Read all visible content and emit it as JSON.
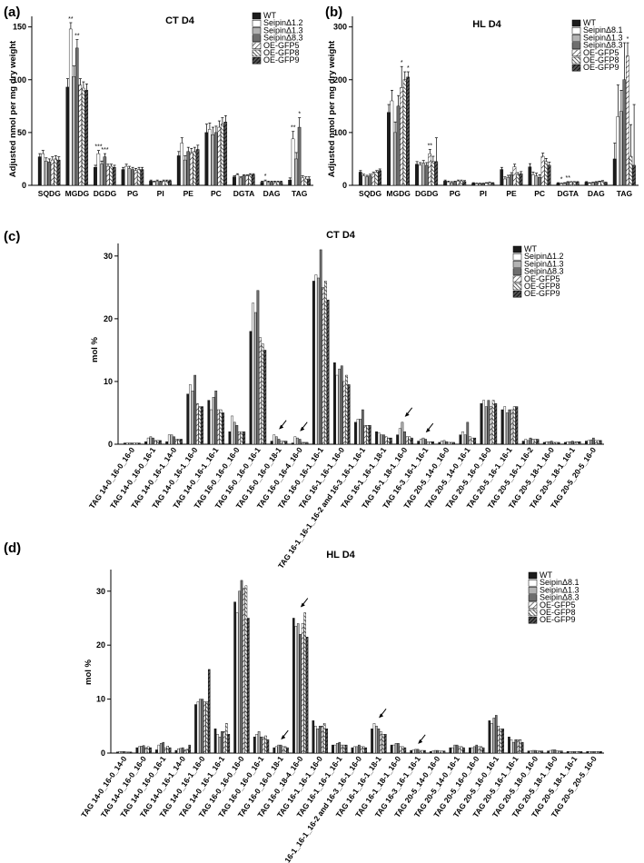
{
  "colors": {
    "WT": "#1c1c1c",
    "mut1": "#ffffff",
    "mut2": "#b3b3b3",
    "mut3": "#6e6e6e",
    "oe5": "hatch-light",
    "oe8": "hatch-medium",
    "oe9": "hatch-dark"
  },
  "panels": [
    {
      "id": "a",
      "label": "(a)",
      "title": "CT D4",
      "ylabel": "Adjusted nmol per mg dry weight",
      "legend": [
        "WT",
        "SeipinΔ1.2",
        "SeipinΔ1.3",
        "SeipinΔ8.3",
        "OE-GFP5",
        "OE-GFP8",
        "OE-GFP9"
      ],
      "yticks": [
        "0",
        "50",
        "100",
        "150"
      ]
    },
    {
      "id": "b",
      "label": "(b)",
      "title": "HL D4",
      "ylabel": "Adjusted nmol per mg dry weight",
      "legend": [
        "WT",
        "SeipinΔ8.1",
        "SeipinΔ1.3",
        "SeipinΔ8.3",
        "OE-GFP5",
        "OE-GFP8",
        "OE-GFP9"
      ],
      "yticks": [
        "0",
        "100",
        "200",
        "300"
      ]
    },
    {
      "id": "c",
      "label": "(c)",
      "title": "CT D4",
      "ylabel": "mol %",
      "legend": [
        "WT",
        "SeipinΔ1.2",
        "SeipinΔ1.3",
        "SeipinΔ8.3",
        "OE-GFP5",
        "OE-GFP8",
        "OE-GFP9"
      ],
      "yticks": [
        "0",
        "10",
        "20",
        "30"
      ]
    },
    {
      "id": "d",
      "label": "(d)",
      "title": "HL D4",
      "ylabel": "mol %",
      "legend": [
        "WT",
        "SeipinΔ8.1",
        "SeipinΔ1.3",
        "SeipinΔ8.3",
        "OE-GFP5",
        "OE-GFP8",
        "OE-GFP9"
      ],
      "yticks": [
        "0",
        "10",
        "20",
        "30"
      ]
    }
  ],
  "chart_data": [
    {
      "panel": "a",
      "type": "bar",
      "title": "CT D4",
      "ylabel": "Adjusted nmol per mg dry weight",
      "ylim": [
        0,
        160
      ],
      "categories": [
        "SQDG",
        "MGDG",
        "DGDG",
        "PG",
        "PI",
        "PE",
        "PC",
        "DGTA",
        "DAG",
        "TAG"
      ],
      "series": [
        {
          "name": "WT",
          "values": [
            27,
            93,
            17,
            15,
            4,
            28,
            50,
            8,
            3,
            5
          ]
        },
        {
          "name": "SeipinΔ1.2",
          "values": [
            30,
            148,
            30,
            18,
            3,
            40,
            53,
            10,
            4,
            44
          ]
        },
        {
          "name": "SeipinΔ1.3",
          "values": [
            23,
            103,
            20,
            16,
            4,
            24,
            48,
            7,
            3,
            25
          ]
        },
        {
          "name": "SeipinΔ8.3",
          "values": [
            22,
            130,
            27,
            15,
            3,
            32,
            50,
            9,
            3,
            55
          ]
        },
        {
          "name": "OE-GFP5",
          "values": [
            24,
            95,
            18,
            14,
            4,
            31,
            55,
            9,
            3,
            7
          ]
        },
        {
          "name": "OE-GFP8",
          "values": [
            25,
            92,
            18,
            15,
            4,
            32,
            58,
            10,
            3,
            6
          ]
        },
        {
          "name": "OE-GFP9",
          "values": [
            24,
            90,
            17,
            15,
            4,
            34,
            60,
            10,
            3,
            6
          ]
        }
      ],
      "errors": [
        [
          3,
          8,
          2,
          2,
          1,
          4,
          8,
          1,
          1,
          2
        ],
        [
          3,
          6,
          3,
          2,
          1,
          5,
          6,
          1,
          1,
          7
        ],
        [
          3,
          10,
          3,
          2,
          1,
          4,
          7,
          1,
          1,
          6
        ],
        [
          3,
          8,
          3,
          2,
          1,
          4,
          6,
          1,
          1,
          9
        ],
        [
          3,
          6,
          2,
          2,
          1,
          4,
          6,
          1,
          1,
          2
        ],
        [
          3,
          6,
          2,
          2,
          1,
          4,
          6,
          1,
          1,
          2
        ],
        [
          3,
          6,
          2,
          2,
          1,
          4,
          6,
          1,
          1,
          2
        ]
      ],
      "significance": [
        {
          "category": "MGDG",
          "series": 1,
          "mark": "**"
        },
        {
          "category": "MGDG",
          "series": 3,
          "mark": "**"
        },
        {
          "category": "DGDG",
          "series": 1,
          "mark": "***"
        },
        {
          "category": "DGDG",
          "series": 3,
          "mark": "***"
        },
        {
          "category": "DAG",
          "series": 1,
          "mark": "*"
        },
        {
          "category": "TAG",
          "series": 1,
          "mark": "**"
        },
        {
          "category": "TAG",
          "series": 3,
          "mark": "*"
        }
      ]
    },
    {
      "panel": "b",
      "type": "bar",
      "title": "HL D4",
      "ylabel": "Adjusted nmol per mg dry weight",
      "ylim": [
        0,
        320
      ],
      "categories": [
        "SQDG",
        "MGDG",
        "DGDG",
        "PG",
        "PI",
        "PE",
        "PC",
        "DGTA",
        "DAG",
        "TAG"
      ],
      "series": [
        {
          "name": "WT",
          "values": [
            25,
            138,
            40,
            8,
            4,
            30,
            35,
            4,
            6,
            50
          ]
        },
        {
          "name": "SeipinΔ8.1",
          "values": [
            18,
            160,
            38,
            6,
            3,
            12,
            20,
            3,
            4,
            130
          ]
        },
        {
          "name": "SeipinΔ1.3",
          "values": [
            16,
            100,
            42,
            5,
            3,
            15,
            18,
            4,
            5,
            140
          ]
        },
        {
          "name": "SeipinΔ8.3",
          "values": [
            18,
            150,
            38,
            6,
            3,
            20,
            15,
            6,
            6,
            200
          ]
        },
        {
          "name": "OE-GFP5",
          "values": [
            22,
            185,
            60,
            8,
            4,
            35,
            55,
            6,
            7,
            245
          ]
        },
        {
          "name": "OE-GFP8",
          "values": [
            25,
            200,
            45,
            8,
            5,
            20,
            45,
            6,
            8,
            55
          ]
        },
        {
          "name": "OE-GFP9",
          "values": [
            28,
            205,
            45,
            7,
            4,
            22,
            38,
            6,
            5,
            38
          ]
        }
      ],
      "errors": [
        [
          3,
          15,
          5,
          2,
          1,
          4,
          6,
          1,
          1,
          30
        ],
        [
          3,
          20,
          5,
          2,
          1,
          4,
          5,
          1,
          1,
          60
        ],
        [
          3,
          20,
          5,
          2,
          1,
          4,
          5,
          1,
          1,
          40
        ],
        [
          3,
          20,
          5,
          2,
          1,
          4,
          5,
          1,
          1,
          70
        ],
        [
          3,
          40,
          8,
          2,
          1,
          5,
          6,
          1,
          1,
          25
        ],
        [
          3,
          15,
          10,
          2,
          1,
          4,
          6,
          1,
          1,
          60
        ],
        [
          3,
          10,
          45,
          2,
          1,
          4,
          6,
          1,
          1,
          115
        ]
      ],
      "significance": [
        {
          "category": "MGDG",
          "series": 4,
          "mark": "*"
        },
        {
          "category": "MGDG",
          "series": 6,
          "mark": "*"
        },
        {
          "category": "DGDG",
          "series": 4,
          "mark": "**"
        },
        {
          "category": "DGTA",
          "series": 1,
          "mark": "*"
        },
        {
          "category": "DGTA",
          "series": 3,
          "mark": "**"
        },
        {
          "category": "TAG",
          "series": 4,
          "mark": "*"
        }
      ]
    },
    {
      "panel": "c",
      "type": "bar",
      "title": "CT D4",
      "ylabel": "mol %",
      "ylim": [
        0,
        32
      ],
      "categories": [
        "TAG 14-0_16-0_16-0",
        "TAG 14-0_16-0_16-1",
        "TAG 14-0_16-1_14-0",
        "TAG 14-0_16-1_16-0",
        "TAG 14-0_16-1_16-1",
        "TAG 16-0_16-0_16-0",
        "TAG 16-0_16-0_16-1",
        "TAG 16-0_16-0_18-1",
        "TAG 16-0_16-4_16-0",
        "TAG 16-0_16-1_16-1",
        "TAG 16-1_16-1_16-0",
        "TAG 16-1_16-1_16-2 and 16-3_16-1_16-1",
        "TAG 16-1_16-1_18-1",
        "TAG 16-1_18-1_16-0",
        "TAG 16-3_16-1_16-1",
        "TAG 20-5_14-0_16-0",
        "TAG 20-5_14-0_16-1",
        "TAG 20-5_16-0_16-0",
        "TAG 20-5_16-1_16-1",
        "TAG 20-5_16-1_16-2",
        "TAG 20-5_18-1_16-0",
        "TAG 20-5_18-1_16-1",
        "TAG 20-5_20-5_16-0"
      ],
      "series": [
        {
          "name": "WT",
          "values": [
            0.2,
            0.4,
            0.4,
            8.0,
            7.0,
            2.0,
            18.0,
            0.5,
            0.2,
            26.0,
            13.0,
            3.5,
            2.0,
            1.5,
            0.5,
            0.3,
            1.5,
            6.5,
            5.5,
            0.5,
            0.3,
            0.3,
            0.5
          ]
        },
        {
          "name": "SeipinΔ1.2",
          "values": [
            0.2,
            1.0,
            1.5,
            9.5,
            5.5,
            4.5,
            22.5,
            1.5,
            1.2,
            27.0,
            11.0,
            4.0,
            1.8,
            2.5,
            0.8,
            0.5,
            2.0,
            7.0,
            6.0,
            0.8,
            0.4,
            0.4,
            0.6
          ]
        },
        {
          "name": "SeipinΔ1.3",
          "values": [
            0.2,
            1.2,
            1.5,
            8.5,
            7.5,
            3.5,
            21.0,
            1.2,
            1.0,
            26.5,
            12.0,
            4.0,
            1.5,
            3.5,
            1.0,
            0.6,
            1.5,
            6.0,
            5.0,
            0.6,
            0.4,
            0.4,
            0.7
          ]
        },
        {
          "name": "SeipinΔ8.3",
          "values": [
            0.2,
            1.0,
            1.2,
            11.0,
            8.5,
            3.0,
            24.5,
            0.8,
            0.8,
            31.0,
            12.5,
            5.5,
            1.5,
            2.0,
            0.8,
            0.4,
            3.5,
            7.0,
            5.5,
            1.0,
            0.5,
            0.5,
            1.0
          ]
        },
        {
          "name": "OE-GFP5",
          "values": [
            0.2,
            0.6,
            0.8,
            6.5,
            5.5,
            2.0,
            17.0,
            0.5,
            0.3,
            25.0,
            10.0,
            3.0,
            1.2,
            1.2,
            0.4,
            0.3,
            1.2,
            6.0,
            5.5,
            0.8,
            0.3,
            0.4,
            0.6
          ]
        },
        {
          "name": "OE-GFP8",
          "values": [
            0.2,
            0.6,
            0.8,
            6.0,
            5.5,
            2.0,
            16.0,
            0.5,
            0.3,
            26.0,
            11.0,
            3.0,
            1.0,
            1.2,
            0.4,
            0.3,
            1.0,
            7.0,
            6.0,
            0.8,
            0.3,
            0.4,
            0.6
          ]
        },
        {
          "name": "OE-GFP9",
          "values": [
            0.2,
            0.6,
            0.8,
            6.0,
            5.0,
            2.0,
            15.0,
            0.5,
            0.3,
            23.0,
            9.5,
            3.0,
            1.0,
            1.0,
            0.4,
            0.3,
            1.0,
            6.5,
            6.0,
            0.8,
            0.3,
            0.4,
            0.6
          ]
        }
      ],
      "arrows_at": [
        "TAG 16-0_16-0_18-1",
        "TAG 16-0_16-4_16-0",
        "TAG 16-1_18-1_16-0",
        "TAG 16-3_16-1_16-1"
      ]
    },
    {
      "panel": "d",
      "type": "bar",
      "title": "HL D4",
      "ylabel": "mol %",
      "ylim": [
        0,
        34
      ],
      "categories": [
        "TAG 14-0_16-0_14-0",
        "TAG 14-0_16-0_16-0",
        "TAG 14-0_16-0_16-1",
        "TAG 14-0_16-1_14-0",
        "TAG 14-0_16-1_16-0",
        "TAG 14-0_16-1_16-1",
        "TAG 16-0_16-0_16-0",
        "TAG 16-0_16-0_16-1",
        "TAG 16-0_16-0_18-1",
        "TAG 16-0_18-4_16-0",
        "TAG 16-1_16-1_16-0",
        "TAG 16-1_16-1_16-1",
        "TAG 16-1_16-1_16-2 and 16-3_16-1_16-0",
        "TAG 16-1_16-1_18-1",
        "TAG 16-1_18-1_16-0",
        "TAG 16-3_16-1_16-1",
        "TAG 20-5_14-0_16-0",
        "TAG 20-5_14-0_16-1",
        "TAG 20-5_16-0_16-0",
        "TAG 20-5_16-0_16-1",
        "TAG 20-5_16-1_16-1",
        "TAG 20-5_18-0_16-0",
        "TAG 20-5_18-1_16-0",
        "TAG 20-5_18-1_16-1",
        "TAG 20-5_20-5_16-0"
      ],
      "series": [
        {
          "name": "WT",
          "values": [
            0.2,
            1.0,
            0.6,
            0.5,
            9.0,
            4.5,
            28.0,
            3.0,
            1.0,
            25.0,
            6.0,
            1.5,
            1.0,
            4.5,
            1.5,
            0.5,
            0.3,
            1.0,
            1.0,
            6.0,
            3.0,
            0.4,
            0.4,
            0.3,
            0.3
          ]
        },
        {
          "name": "SeipinΔ8.1",
          "values": [
            0.3,
            1.2,
            1.5,
            0.8,
            9.5,
            3.5,
            26.0,
            3.5,
            1.2,
            23.5,
            5.0,
            1.5,
            1.2,
            5.5,
            1.5,
            0.6,
            0.4,
            1.0,
            1.0,
            5.5,
            2.5,
            0.4,
            0.5,
            0.3,
            0.3
          ]
        },
        {
          "name": "SeipinΔ1.3",
          "values": [
            0.3,
            1.3,
            1.8,
            0.9,
            10.0,
            3.0,
            30.0,
            4.0,
            1.5,
            24.0,
            4.5,
            1.8,
            1.2,
            5.0,
            1.8,
            0.7,
            0.5,
            1.5,
            1.2,
            6.5,
            2.0,
            0.5,
            0.6,
            0.3,
            0.3
          ]
        },
        {
          "name": "SeipinΔ8.3",
          "values": [
            0.3,
            1.4,
            2.0,
            1.0,
            10.0,
            4.0,
            32.0,
            3.0,
            1.5,
            22.0,
            5.0,
            2.0,
            1.5,
            4.5,
            1.8,
            0.7,
            0.5,
            1.5,
            1.5,
            7.0,
            2.5,
            0.5,
            0.6,
            0.3,
            0.3
          ]
        },
        {
          "name": "OE-GFP5",
          "values": [
            0.2,
            1.0,
            1.0,
            0.6,
            9.5,
            4.0,
            30.5,
            3.0,
            1.2,
            24.0,
            5.0,
            1.5,
            1.2,
            4.0,
            1.2,
            0.5,
            0.4,
            1.2,
            1.2,
            5.0,
            2.5,
            0.4,
            0.4,
            0.3,
            0.3
          ]
        },
        {
          "name": "OE-GFP8",
          "values": [
            0.2,
            1.2,
            1.3,
            0.7,
            9.5,
            5.5,
            31.0,
            3.2,
            1.2,
            26.0,
            5.5,
            1.5,
            1.2,
            3.5,
            1.2,
            0.5,
            0.4,
            1.2,
            1.2,
            4.5,
            2.5,
            0.4,
            0.4,
            0.3,
            0.3
          ]
        },
        {
          "name": "OE-GFP9",
          "values": [
            0.2,
            1.0,
            1.0,
            1.5,
            15.5,
            3.5,
            25.0,
            2.5,
            1.0,
            21.5,
            4.5,
            1.5,
            1.0,
            3.5,
            1.0,
            0.5,
            0.4,
            1.0,
            1.0,
            4.5,
            2.0,
            0.4,
            0.4,
            0.3,
            0.3
          ]
        }
      ],
      "arrows_at": [
        "TAG 16-0_16-0_18-1",
        "TAG 16-0_18-4_16-0",
        "TAG 16-1_16-1_18-1",
        "TAG 16-3_16-1_16-1"
      ]
    }
  ]
}
